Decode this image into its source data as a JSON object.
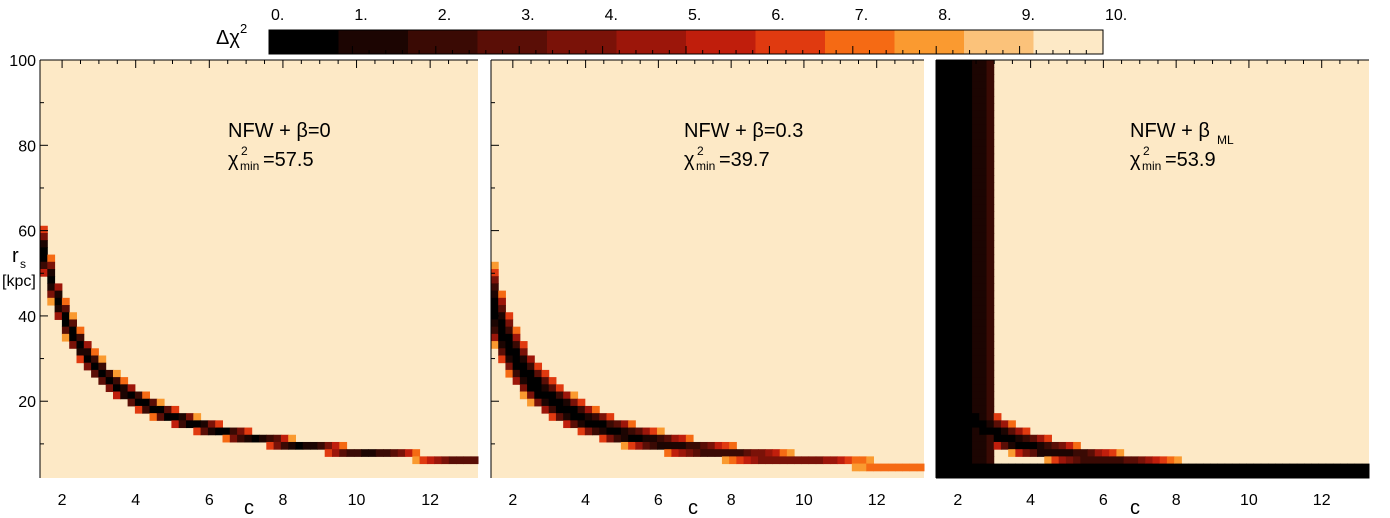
{
  "colorbar": {
    "label_main": "Δχ",
    "label_sup": "2",
    "ticks": [
      "0.",
      "1.",
      "2.",
      "3.",
      "4.",
      "5.",
      "6.",
      "7.",
      "8.",
      "9.",
      "10."
    ],
    "range": [
      0,
      10
    ],
    "colors": [
      "#000000",
      "#1c0502",
      "#3a0a04",
      "#5a0e06",
      "#7a1208",
      "#9c160a",
      "#c01e0c",
      "#e03a10",
      "#f56a14",
      "#fa9a30",
      "#fbc27a",
      "#fde9c6"
    ]
  },
  "chart_data": [
    {
      "type": "heatmap",
      "model": "NFW + β=0",
      "annotation": {
        "main": "NFW + β=0",
        "chi_symbol": "χ",
        "chi_sup": "2",
        "chi_sub": "min",
        "chi_value": "=57.5"
      },
      "xlabel": "c",
      "ylabel": "r",
      "ylabel_sub": "s",
      "ylabel_unit": "[kpc]",
      "xlim": [
        1.4,
        13.3
      ],
      "ylim": [
        2,
        100
      ],
      "xticks": [
        "2",
        "4",
        "6",
        "8",
        "10",
        "12"
      ],
      "yticks": [
        "20",
        "40",
        "60",
        "80",
        "100"
      ],
      "valley": {
        "k": 82,
        "halfwidth": 0.11,
        "c_min": 4.4,
        "width_scale": 4.0,
        "delta_min": 0.3,
        "c_end": 13.3
      }
    },
    {
      "type": "heatmap",
      "model": "NFW + β=0.3",
      "annotation": {
        "main": "NFW + β=0.3",
        "chi_symbol": "χ",
        "chi_sup": "2",
        "chi_sub": "min",
        "chi_value": "=39.7"
      },
      "xlabel": "c",
      "xlim": [
        1.4,
        13.3
      ],
      "ylim": [
        2,
        100
      ],
      "xticks": [
        "2",
        "4",
        "6",
        "8",
        "10",
        "12"
      ],
      "valley": {
        "k": 62,
        "halfwidth": 0.22,
        "c_min": 2.0,
        "width_scale": 3.0,
        "delta_min": 0.0,
        "c_end": 13.3
      }
    },
    {
      "type": "heatmap",
      "model": "NFW + βML",
      "annotation": {
        "main": "NFW + β",
        "beta_sub": "ML",
        "chi_symbol": "χ",
        "chi_sup": "2",
        "chi_sub": "min",
        "chi_value": "=53.9"
      },
      "xlabel": "c",
      "xlim": [
        1.4,
        13.3
      ],
      "ylim": [
        2,
        100
      ],
      "xticks": [
        "2",
        "4",
        "6",
        "8",
        "10",
        "12"
      ],
      "valley": {
        "k": 38,
        "halfwidth": 0.3,
        "c_min": 1.4,
        "width_scale": 2.5,
        "delta_min": 0.0,
        "c_end": 13.3,
        "black_region_c": 3.0
      }
    }
  ]
}
